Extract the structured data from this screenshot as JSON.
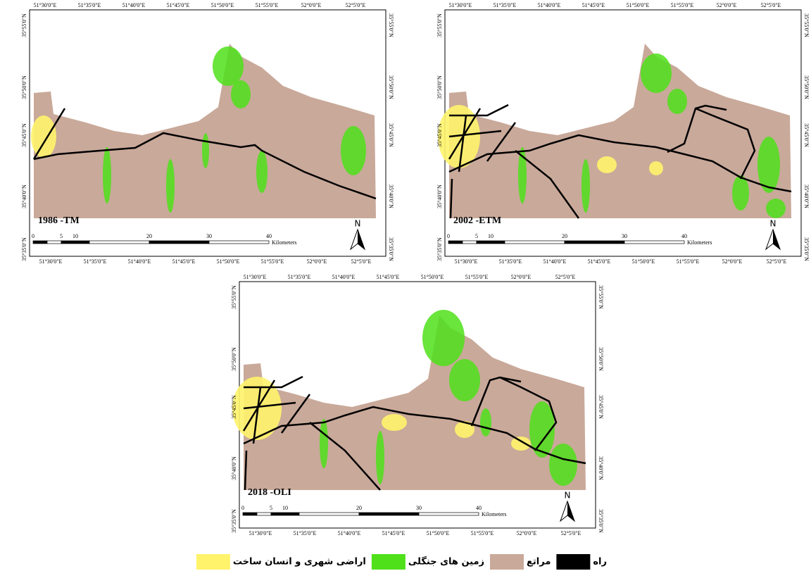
{
  "graticule": {
    "lon": [
      "51°30'0\"E",
      "51°35'0\"E",
      "51°40'0\"E",
      "51°45'0\"E",
      "51°50'0\"E",
      "51°55'0\"E",
      "52°0'0\"E",
      "52°5'0\"E"
    ],
    "lat": [
      "35°55'0\"N",
      "35°50'0\"N",
      "35°45'0\"N",
      "35°40'0\"N",
      "35°35'0\"N"
    ]
  },
  "scale_bar": {
    "ticks": [
      "0",
      "5",
      "10",
      "20",
      "30",
      "40"
    ],
    "unit": "Kilometers"
  },
  "north": "N",
  "panels": [
    {
      "title": "1986 -TM"
    },
    {
      "title": "2002 -ETM"
    },
    {
      "title": "2018 -OLI"
    }
  ],
  "legend": [
    {
      "label": "راه",
      "color": "#000000"
    },
    {
      "label": "مراتع",
      "color": "#c9a99a"
    },
    {
      "label": "زمین های جنگلی",
      "color": "#4fe01a"
    },
    {
      "label": "اراضی شهری و انسان ساخت",
      "color": "#fff36b"
    }
  ]
}
